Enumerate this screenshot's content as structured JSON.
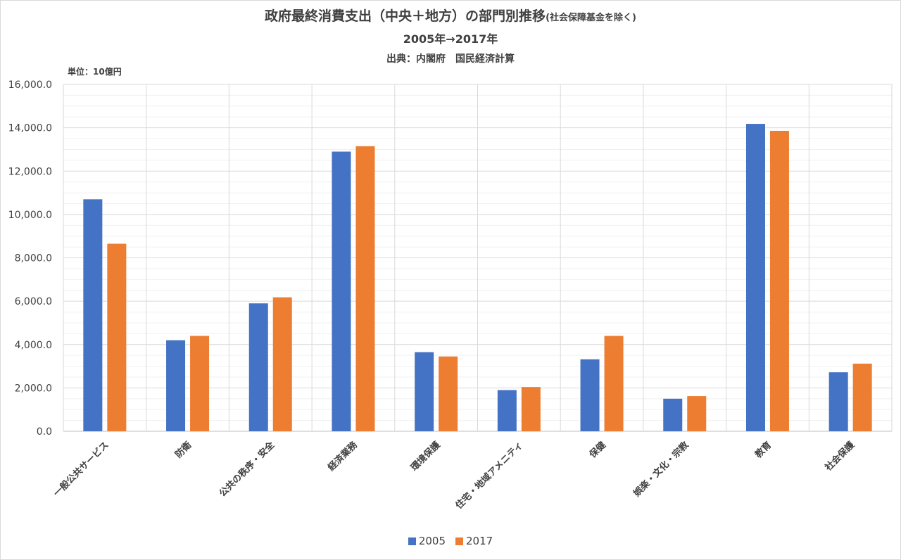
{
  "chart_data": {
    "type": "bar",
    "title": "政府最終消費支出（中央＋地方）の部門別推移",
    "title_note": "(社会保障基金を除く)",
    "subtitle": "2005年→2017年",
    "source": "出典：内閣府　国民経済計算",
    "unit": "単位：10億円",
    "categories": [
      "一般公共サービス",
      "防衛",
      "公共の秩序・安全",
      "経済業務",
      "環境保護",
      "住宅・地域アメニティ",
      "保健",
      "娯楽・文化・宗教",
      "教育",
      "社会保護"
    ],
    "series": [
      {
        "name": "2005",
        "color": "#4472c4",
        "values": [
          10700,
          4200,
          5900,
          12900,
          3650,
          1900,
          3320,
          1500,
          14180,
          2720
        ]
      },
      {
        "name": "2017",
        "color": "#ed7d31",
        "values": [
          8650,
          4400,
          6180,
          13150,
          3450,
          2040,
          4400,
          1620,
          13860,
          3120
        ]
      }
    ],
    "ylim": [
      0,
      16000
    ],
    "yticks": [
      "0.0",
      "2,000.0",
      "4,000.0",
      "6,000.0",
      "8,000.0",
      "10,000.0",
      "12,000.0",
      "14,000.0",
      "16,000.0"
    ],
    "ytick_values": [
      0,
      2000,
      4000,
      6000,
      8000,
      10000,
      12000,
      14000,
      16000
    ],
    "grid": true,
    "legend_position": "bottom"
  }
}
